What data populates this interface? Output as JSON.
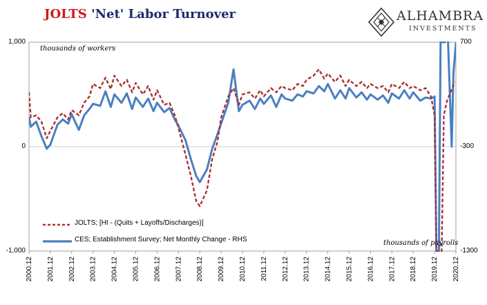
{
  "title": {
    "part1": "JOLTS",
    "part2": "'Net' Labor Turnover"
  },
  "logo": {
    "name": "ALHAMBRA",
    "sub": "INVESTMENTS",
    "mark": "diamond-lattice-icon"
  },
  "annotations": {
    "left_units": "thousands of workers",
    "right_units": "thousands of payrolls"
  },
  "colors": {
    "jolts": "#a83232",
    "ces": "#4a7fc1",
    "title_red": "#d0161c",
    "title_blue": "#1f2a6b"
  },
  "chart_data": {
    "type": "line",
    "x_tick_labels": [
      "2000.12",
      "2001.12",
      "2002.12",
      "2003.12",
      "2004.12",
      "2005.12",
      "2006.12",
      "2007.12",
      "2008.12",
      "2009.12",
      "2010.12",
      "2011.12",
      "2012.12",
      "2013.12",
      "2014.12",
      "2015.12",
      "2016.12",
      "2017.12",
      "2018.12",
      "2019.12",
      "2020.12"
    ],
    "y_left": {
      "range": [
        -1000,
        1000
      ],
      "ticks": [
        {
          "v": 1000,
          "label": "1,000"
        },
        {
          "v": 0,
          "label": "0"
        },
        {
          "v": -1000,
          "label": "-1,000"
        }
      ]
    },
    "y_right": {
      "range": [
        -1300,
        700
      ],
      "ticks": [
        {
          "v": 700,
          "label": "700"
        },
        {
          "v": -300,
          "label": "-300"
        },
        {
          "v": -1300,
          "label": "-1300"
        }
      ]
    },
    "legend_position": "bottom-left",
    "series": [
      {
        "name": "JOLTS; [HI - (Quits + Layoffs/Discharges)]",
        "axis": "left",
        "style": "dashed",
        "points": [
          [
            2000.917,
            520
          ],
          [
            2001.0,
            280
          ],
          [
            2001.25,
            300
          ],
          [
            2001.5,
            240
          ],
          [
            2001.75,
            80
          ],
          [
            2001.917,
            150
          ],
          [
            2002.25,
            280
          ],
          [
            2002.5,
            320
          ],
          [
            2002.75,
            260
          ],
          [
            2002.917,
            350
          ],
          [
            2003.25,
            300
          ],
          [
            2003.5,
            420
          ],
          [
            2003.75,
            480
          ],
          [
            2003.917,
            600
          ],
          [
            2004.25,
            560
          ],
          [
            2004.5,
            660
          ],
          [
            2004.75,
            550
          ],
          [
            2004.917,
            680
          ],
          [
            2005.25,
            580
          ],
          [
            2005.5,
            640
          ],
          [
            2005.75,
            520
          ],
          [
            2005.917,
            610
          ],
          [
            2006.25,
            500
          ],
          [
            2006.5,
            580
          ],
          [
            2006.75,
            450
          ],
          [
            2006.917,
            540
          ],
          [
            2007.25,
            400
          ],
          [
            2007.5,
            420
          ],
          [
            2007.75,
            300
          ],
          [
            2007.917,
            180
          ],
          [
            2008.25,
            -80
          ],
          [
            2008.5,
            -280
          ],
          [
            2008.75,
            -520
          ],
          [
            2008.917,
            -570
          ],
          [
            2009.25,
            -420
          ],
          [
            2009.5,
            -120
          ],
          [
            2009.75,
            50
          ],
          [
            2009.917,
            280
          ],
          [
            2010.25,
            480
          ],
          [
            2010.5,
            560
          ],
          [
            2010.75,
            400
          ],
          [
            2010.917,
            500
          ],
          [
            2011.25,
            520
          ],
          [
            2011.5,
            460
          ],
          [
            2011.75,
            540
          ],
          [
            2011.917,
            480
          ],
          [
            2012.25,
            560
          ],
          [
            2012.5,
            520
          ],
          [
            2012.75,
            580
          ],
          [
            2012.917,
            560
          ],
          [
            2013.25,
            540
          ],
          [
            2013.5,
            600
          ],
          [
            2013.75,
            580
          ],
          [
            2013.917,
            640
          ],
          [
            2014.25,
            680
          ],
          [
            2014.5,
            740
          ],
          [
            2014.75,
            650
          ],
          [
            2014.917,
            700
          ],
          [
            2015.25,
            620
          ],
          [
            2015.5,
            680
          ],
          [
            2015.75,
            580
          ],
          [
            2015.917,
            640
          ],
          [
            2016.25,
            580
          ],
          [
            2016.5,
            620
          ],
          [
            2016.75,
            560
          ],
          [
            2016.917,
            600
          ],
          [
            2017.25,
            560
          ],
          [
            2017.5,
            580
          ],
          [
            2017.75,
            520
          ],
          [
            2017.917,
            600
          ],
          [
            2018.25,
            560
          ],
          [
            2018.5,
            620
          ],
          [
            2018.75,
            560
          ],
          [
            2018.917,
            580
          ],
          [
            2019.25,
            540
          ],
          [
            2019.5,
            560
          ],
          [
            2019.75,
            480
          ],
          [
            2019.917,
            300
          ],
          [
            2020.0,
            -1000
          ],
          [
            2020.12,
            -1000
          ],
          [
            2020.25,
            -1000
          ],
          [
            2020.35,
            300
          ],
          [
            2020.5,
            440
          ],
          [
            2020.75,
            560
          ],
          [
            2020.85,
            620
          ]
        ]
      },
      {
        "name": "CES; Establishment Survey; Net Monthly Change - RHS",
        "axis": "right",
        "style": "solid",
        "points": [
          [
            2000.917,
            -20
          ],
          [
            2001.0,
            -110
          ],
          [
            2001.25,
            -60
          ],
          [
            2001.5,
            -200
          ],
          [
            2001.75,
            -320
          ],
          [
            2001.917,
            -280
          ],
          [
            2002.25,
            -90
          ],
          [
            2002.5,
            -40
          ],
          [
            2002.75,
            -80
          ],
          [
            2002.917,
            10
          ],
          [
            2003.25,
            -140
          ],
          [
            2003.5,
            0
          ],
          [
            2003.75,
            60
          ],
          [
            2003.917,
            110
          ],
          [
            2004.25,
            90
          ],
          [
            2004.5,
            230
          ],
          [
            2004.75,
            80
          ],
          [
            2004.917,
            200
          ],
          [
            2005.25,
            120
          ],
          [
            2005.5,
            210
          ],
          [
            2005.75,
            60
          ],
          [
            2005.917,
            170
          ],
          [
            2006.25,
            80
          ],
          [
            2006.5,
            160
          ],
          [
            2006.75,
            40
          ],
          [
            2006.917,
            120
          ],
          [
            2007.25,
            30
          ],
          [
            2007.5,
            70
          ],
          [
            2007.75,
            -40
          ],
          [
            2007.917,
            -100
          ],
          [
            2008.25,
            -240
          ],
          [
            2008.5,
            -420
          ],
          [
            2008.75,
            -580
          ],
          [
            2008.917,
            -640
          ],
          [
            2009.25,
            -520
          ],
          [
            2009.5,
            -320
          ],
          [
            2009.75,
            -180
          ],
          [
            2009.917,
            -80
          ],
          [
            2010.25,
            120
          ],
          [
            2010.5,
            440
          ],
          [
            2010.75,
            40
          ],
          [
            2010.917,
            100
          ],
          [
            2011.25,
            140
          ],
          [
            2011.5,
            60
          ],
          [
            2011.75,
            160
          ],
          [
            2011.917,
            110
          ],
          [
            2012.25,
            190
          ],
          [
            2012.5,
            80
          ],
          [
            2012.75,
            200
          ],
          [
            2012.917,
            160
          ],
          [
            2013.25,
            140
          ],
          [
            2013.5,
            200
          ],
          [
            2013.75,
            180
          ],
          [
            2013.917,
            230
          ],
          [
            2014.25,
            210
          ],
          [
            2014.5,
            280
          ],
          [
            2014.75,
            230
          ],
          [
            2014.917,
            300
          ],
          [
            2015.25,
            160
          ],
          [
            2015.5,
            240
          ],
          [
            2015.75,
            160
          ],
          [
            2015.917,
            260
          ],
          [
            2016.25,
            170
          ],
          [
            2016.5,
            220
          ],
          [
            2016.75,
            150
          ],
          [
            2016.917,
            200
          ],
          [
            2017.25,
            150
          ],
          [
            2017.5,
            190
          ],
          [
            2017.75,
            120
          ],
          [
            2017.917,
            210
          ],
          [
            2018.25,
            160
          ],
          [
            2018.5,
            240
          ],
          [
            2018.75,
            160
          ],
          [
            2018.917,
            220
          ],
          [
            2019.25,
            140
          ],
          [
            2019.5,
            170
          ],
          [
            2019.75,
            160
          ],
          [
            2019.917,
            180
          ],
          [
            2020.0,
            -1300
          ],
          [
            2020.12,
            -1300
          ],
          [
            2020.2,
            700
          ],
          [
            2020.3,
            700
          ],
          [
            2020.4,
            700
          ],
          [
            2020.5,
            1000
          ],
          [
            2020.6,
            400
          ],
          [
            2020.72,
            -300
          ],
          [
            2020.8,
            400
          ],
          [
            2020.92,
            700
          ]
        ]
      }
    ]
  }
}
